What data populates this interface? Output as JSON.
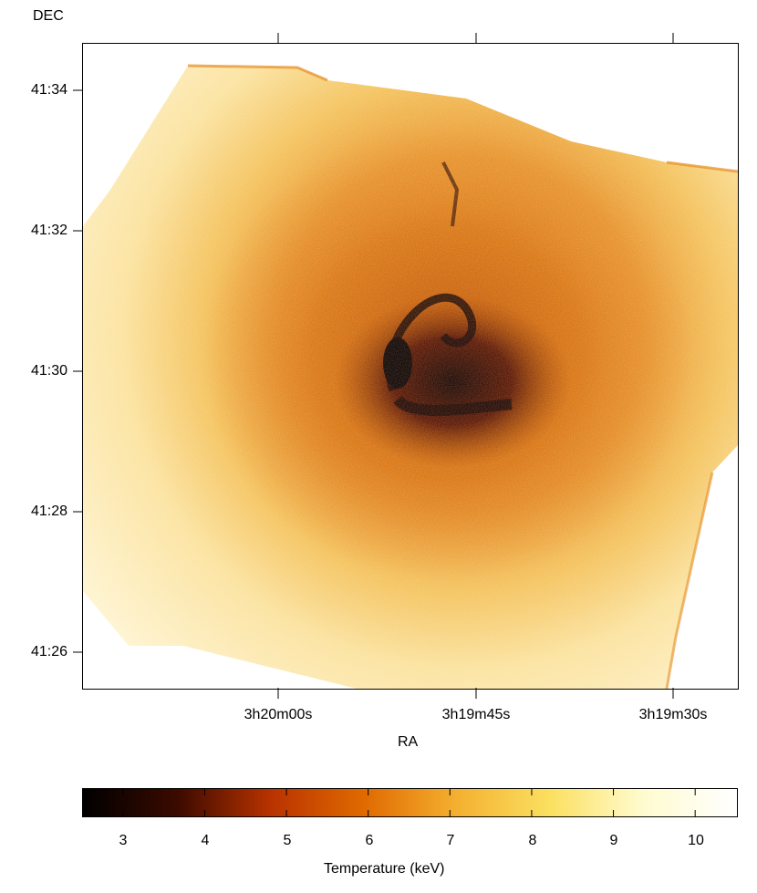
{
  "plot": {
    "y_axis_title": "DEC",
    "x_axis_title": "RA",
    "y_ticks": [
      "41:34",
      "41:32",
      "41:30",
      "41:28",
      "41:26"
    ],
    "x_ticks": [
      "3h20m00s",
      "3h19m45s",
      "3h19m30s"
    ]
  },
  "colorbar": {
    "title": "Temperature (keV)",
    "ticks": [
      "3",
      "4",
      "5",
      "6",
      "7",
      "8",
      "9",
      "10"
    ],
    "range": [
      2.5,
      10.5
    ],
    "colors": [
      "#000000",
      "#3a0a00",
      "#b83200",
      "#e06a00",
      "#f4b030",
      "#fbe060",
      "#fffbd0",
      "#ffffff"
    ]
  },
  "image": {
    "subject": "X-ray temperature map of galaxy cluster core",
    "colors": {
      "outer": "#fdf0c0",
      "mid": "#e58a1f",
      "core": "#a34400",
      "coldest": "#1a0500"
    }
  }
}
